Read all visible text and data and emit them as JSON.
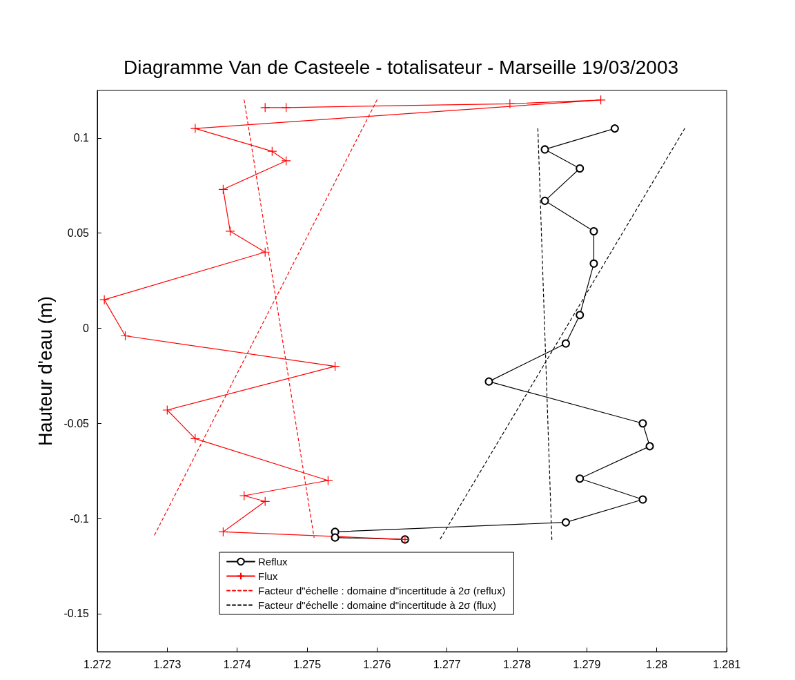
{
  "chart_data": {
    "type": "line",
    "title": "Diagramme Van de Casteele - totalisateur - Marseille 19/03/2003",
    "ylabel": "Hauteur d'eau (m)",
    "xlim": [
      1.272,
      1.281
    ],
    "xticks": [
      1.272,
      1.273,
      1.274,
      1.275,
      1.276,
      1.277,
      1.278,
      1.279,
      1.28,
      1.281
    ],
    "ylim": [
      -0.17,
      0.125
    ],
    "yticks": [
      -0.15,
      -0.1,
      -0.05,
      0,
      0.05,
      0.1
    ],
    "grid": false,
    "legend": "bottom",
    "series": [
      {
        "name": "Reflux",
        "color": "#000000",
        "marker": "circle",
        "line_style": "solid",
        "x": [
          1.2794,
          1.2784,
          1.2789,
          1.2784,
          1.2791,
          1.2791,
          1.2789,
          1.2787,
          1.2776,
          1.2798,
          1.2799,
          1.2789,
          1.2798,
          1.2787,
          1.2754,
          1.2754,
          1.2764
        ],
        "values": [
          0.105,
          0.094,
          0.084,
          0.067,
          0.051,
          0.034,
          0.007,
          -0.008,
          -0.028,
          -0.05,
          -0.062,
          -0.079,
          -0.09,
          -0.102,
          -0.107,
          -0.11,
          -0.111
        ]
      },
      {
        "name": "Flux",
        "color": "#ff0000",
        "marker": "cross",
        "line_style": "solid",
        "x": [
          1.2744,
          1.2747,
          1.2779,
          1.2792,
          1.2734,
          1.2745,
          1.2747,
          1.2738,
          1.2739,
          1.2744,
          1.2721,
          1.2724,
          1.2754,
          1.273,
          1.2734,
          1.2753,
          1.2741,
          1.2744,
          1.2738,
          1.2764
        ],
        "values": [
          0.116,
          0.116,
          0.118,
          0.12,
          0.105,
          0.093,
          0.088,
          0.073,
          0.051,
          0.04,
          0.015,
          -0.004,
          -0.02,
          -0.043,
          -0.058,
          -0.08,
          -0.088,
          -0.091,
          -0.107,
          -0.111
        ]
      },
      {
        "name": "Facteur d\"échelle : domaine d\"incertitude à 2σ (reflux)",
        "color": "#ff0000",
        "marker": "none",
        "line_style": "dashed",
        "x": [
          1.2741,
          1.2751,
          null,
          1.276,
          1.2728
        ],
        "values": [
          0.12,
          -0.11,
          null,
          0.12,
          -0.11
        ]
      },
      {
        "name": "Facteur d\"échelle : domaine d\"incertitude à 2σ (flux)",
        "color": "#000000",
        "marker": "none",
        "line_style": "dashed",
        "x": [
          1.2783,
          1.2785,
          null,
          1.2804,
          1.2769
        ],
        "values": [
          0.105,
          -0.111,
          null,
          0.105,
          -0.111
        ]
      }
    ]
  }
}
